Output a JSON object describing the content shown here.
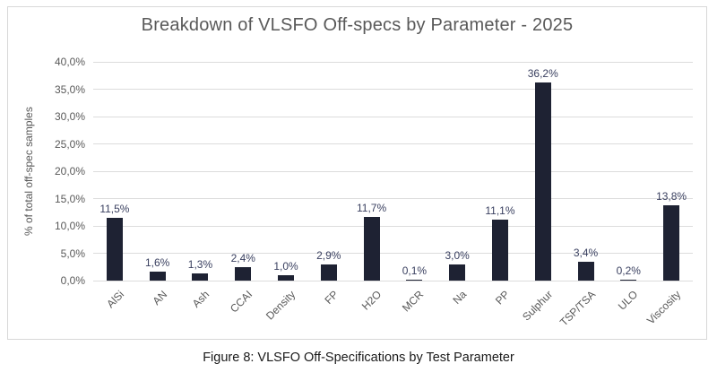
{
  "caption": "Figure 8: VLSFO Off-Specifications by Test Parameter",
  "chart_data": {
    "type": "bar",
    "title": "Breakdown of VLSFO Off-specs by Parameter - 2025",
    "categories": [
      "AlSi",
      "AN",
      "Ash",
      "CCAI",
      "Density",
      "FP",
      "H2O",
      "MCR",
      "Na",
      "PP",
      "Sulphur",
      "TSP/TSA",
      "ULO",
      "Viscosity"
    ],
    "values": [
      11.5,
      1.6,
      1.3,
      2.4,
      1.0,
      2.9,
      11.7,
      0.1,
      3.0,
      11.1,
      36.2,
      3.4,
      0.2,
      13.8
    ],
    "value_labels": [
      "11,5%",
      "1,6%",
      "1,3%",
      "2,4%",
      "1,0%",
      "2,9%",
      "11,7%",
      "0,1%",
      "3,0%",
      "11,1%",
      "36,2%",
      "3,4%",
      "0,2%",
      "13,8%"
    ],
    "xlabel": "",
    "ylabel": "% of total off-spec samples",
    "ylim": [
      0,
      40
    ],
    "ytick_step": 5,
    "ytick_labels": [
      "0,0%",
      "5,0%",
      "10,0%",
      "15,0%",
      "20,0%",
      "25,0%",
      "30,0%",
      "35,0%",
      "40,0%"
    ],
    "grid": true,
    "legend": false,
    "decimal_separator": ","
  },
  "colors": {
    "bar": "#1E2233",
    "data_label": "#3A4060",
    "axis_text": "#595959",
    "gridline": "#DCDCDC",
    "frame_border": "#D8D8D8",
    "title": "#595959",
    "caption": "#1a1a1a"
  }
}
